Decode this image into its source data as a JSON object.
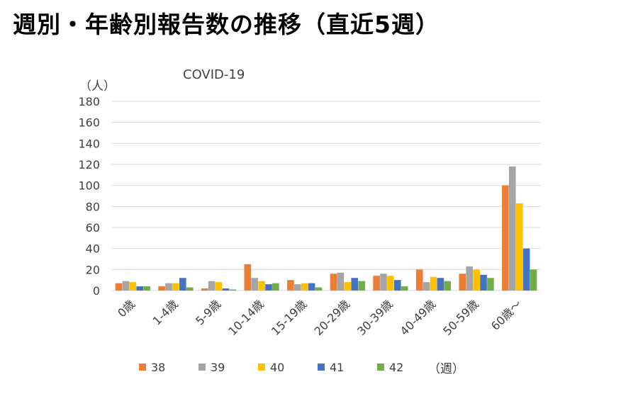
{
  "page": {
    "title": "週別・年齢別報告数の推移（直近5週）"
  },
  "chart_data": {
    "type": "bar",
    "title": "COVID-19",
    "ylabel": "（人）",
    "xlabel": "",
    "legend_title": "（週）",
    "legend_position": "bottom",
    "grid": true,
    "ylim": [
      0,
      180
    ],
    "yticks": [
      "180",
      "160",
      "140",
      "120",
      "100",
      "80",
      "60",
      "40",
      "20",
      "0"
    ],
    "categories": [
      "0歳",
      "1-4歳",
      "5-9歳",
      "10-14歳",
      "15-19歳",
      "20-29歳",
      "30-39歳",
      "40-49歳",
      "50-59歳",
      "60歳～"
    ],
    "series": [
      {
        "name": "38",
        "color": "#ED7D31",
        "values": [
          7,
          4,
          2,
          25,
          10,
          16,
          14,
          20,
          16,
          100
        ]
      },
      {
        "name": "39",
        "color": "#A5A5A5",
        "values": [
          9,
          7,
          9,
          12,
          6,
          17,
          16,
          8,
          23,
          118
        ]
      },
      {
        "name": "40",
        "color": "#FFC000",
        "values": [
          8,
          7,
          8,
          9,
          7,
          8,
          14,
          13,
          20,
          83
        ]
      },
      {
        "name": "41",
        "color": "#4472C4",
        "values": [
          4,
          12,
          2,
          6,
          7,
          12,
          10,
          12,
          15,
          40
        ]
      },
      {
        "name": "42",
        "color": "#70AD47",
        "values": [
          4,
          3,
          1,
          7,
          3,
          9,
          4,
          9,
          12,
          20
        ]
      }
    ]
  }
}
